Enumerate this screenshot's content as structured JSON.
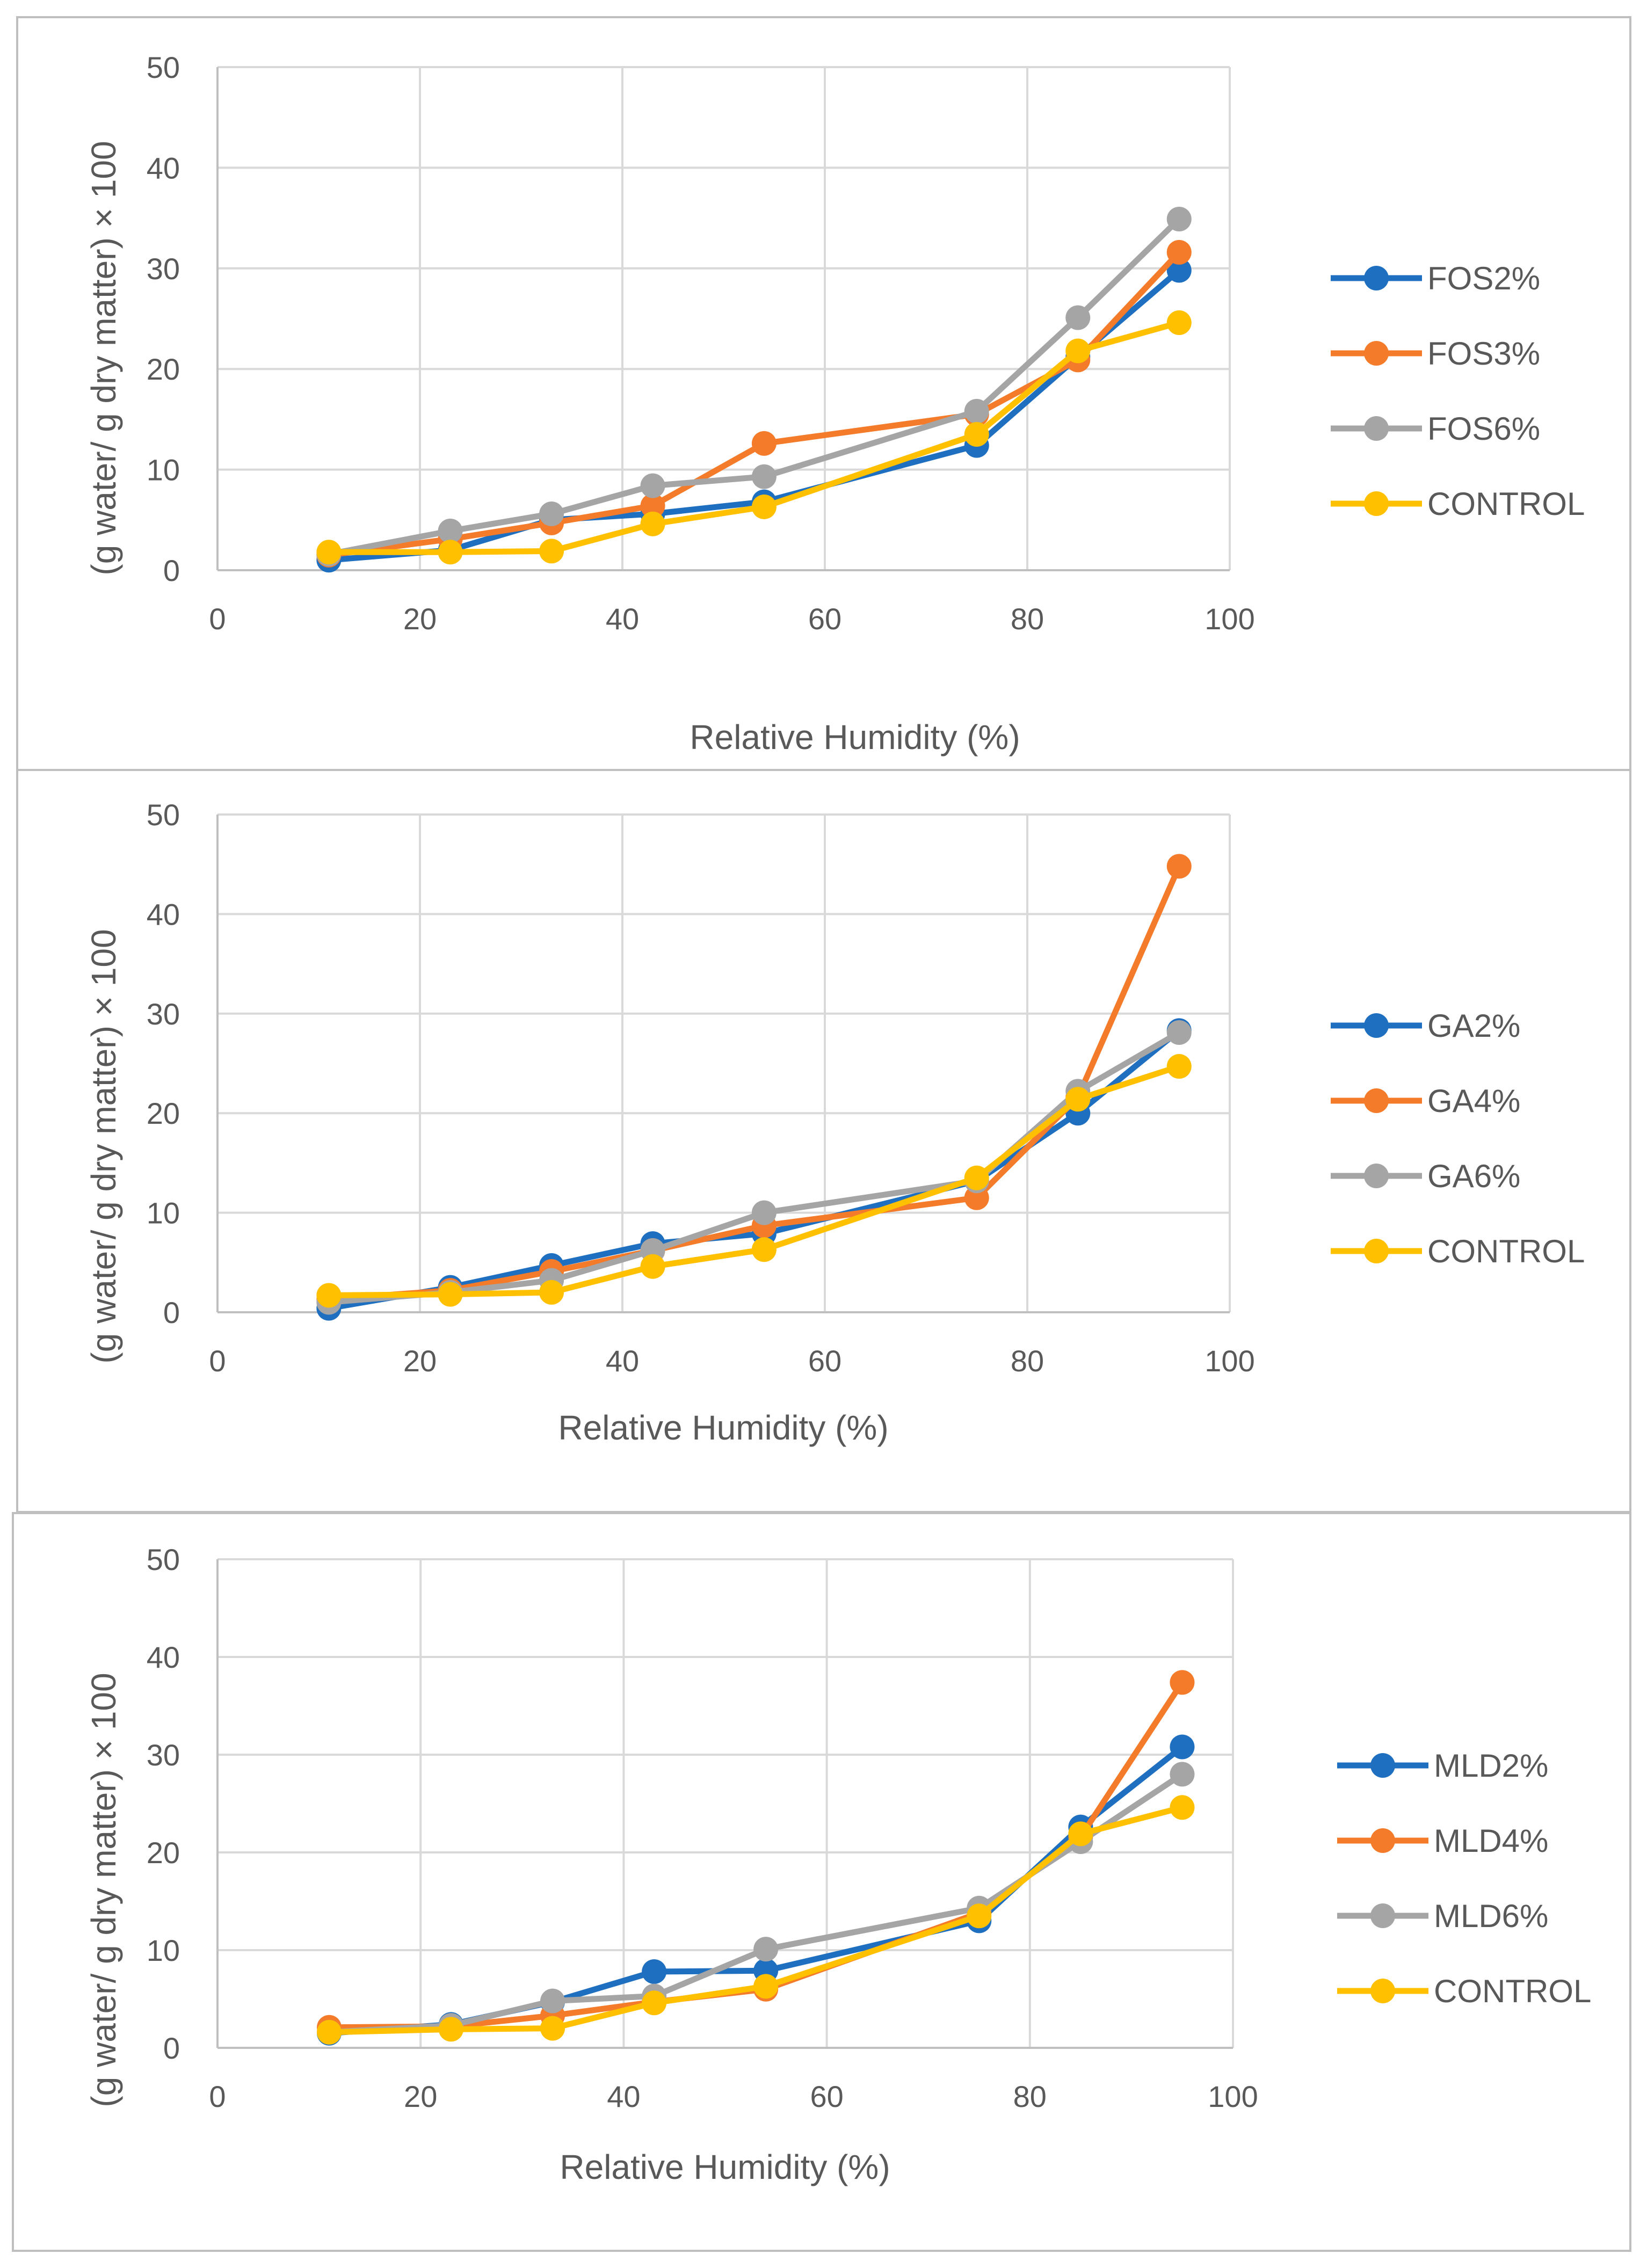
{
  "chart_data": [
    {
      "type": "line",
      "title": "",
      "xlabel": "Relative Humidity (%)",
      "ylabel": "(g water/ g dry matter) × 100",
      "xlim": [
        0,
        100
      ],
      "ylim": [
        0,
        50
      ],
      "xticks": [
        "0",
        "20",
        "40",
        "60",
        "80",
        "100"
      ],
      "yticks": [
        "0",
        "10",
        "20",
        "30",
        "40",
        "50"
      ],
      "grid": true,
      "legend_position": "right",
      "x": [
        11,
        23,
        33,
        43,
        54,
        75,
        85,
        95
      ],
      "series": [
        {
          "name": "FOS2%",
          "color": "#1f6fc0",
          "values": [
            1.0,
            2.0,
            5.0,
            5.6,
            6.8,
            12.4,
            21.2,
            29.8
          ]
        },
        {
          "name": "FOS3%",
          "color": "#f47b2a",
          "values": [
            1.5,
            3.1,
            4.7,
            6.4,
            12.6,
            15.5,
            20.9,
            31.6
          ]
        },
        {
          "name": "FOS6%",
          "color": "#a5a5a5",
          "values": [
            1.6,
            3.9,
            5.6,
            8.4,
            9.3,
            15.8,
            25.1,
            34.9
          ]
        },
        {
          "name": "CONTROL",
          "color": "#ffc000",
          "values": [
            1.8,
            1.8,
            1.9,
            4.6,
            6.3,
            13.5,
            21.8,
            24.6
          ]
        }
      ]
    },
    {
      "type": "line",
      "title": "",
      "xlabel": "Relative Humidity (%)",
      "ylabel": "(g water/ g dry matter) × 100",
      "xlim": [
        0,
        100
      ],
      "ylim": [
        0,
        50
      ],
      "xticks": [
        "0",
        "20",
        "40",
        "60",
        "80",
        "100"
      ],
      "yticks": [
        "0",
        "10",
        "20",
        "30",
        "40",
        "50"
      ],
      "grid": true,
      "legend_position": "right",
      "x": [
        11,
        23,
        33,
        43,
        54,
        75,
        85,
        95
      ],
      "series": [
        {
          "name": "GA2%",
          "color": "#1f6fc0",
          "values": [
            0.4,
            2.5,
            4.7,
            6.9,
            7.9,
            13.2,
            20.0,
            28.3
          ]
        },
        {
          "name": "GA4%",
          "color": "#f47b2a",
          "values": [
            1.3,
            2.2,
            4.1,
            6.2,
            8.7,
            11.5,
            21.6,
            44.8
          ]
        },
        {
          "name": "GA6%",
          "color": "#a5a5a5",
          "values": [
            1.0,
            2.0,
            3.2,
            6.2,
            10.0,
            13.2,
            22.2,
            28.1
          ]
        },
        {
          "name": "CONTROL",
          "color": "#ffc000",
          "values": [
            1.7,
            1.8,
            2.0,
            4.6,
            6.3,
            13.5,
            21.4,
            24.7
          ]
        }
      ]
    },
    {
      "type": "line",
      "title": "",
      "xlabel": "Relative Humidity (%)",
      "ylabel": "(g water/ g dry matter) × 100",
      "xlim": [
        0,
        100
      ],
      "ylim": [
        0,
        50
      ],
      "xticks": [
        "0",
        "20",
        "40",
        "60",
        "80",
        "100"
      ],
      "yticks": [
        "0",
        "10",
        "20",
        "30",
        "40",
        "50"
      ],
      "grid": true,
      "legend_position": "right",
      "x": [
        11,
        23,
        33,
        43,
        54,
        75,
        85,
        95
      ],
      "series": [
        {
          "name": "MLD2%",
          "color": "#1f6fc0",
          "values": [
            1.5,
            2.4,
            4.7,
            7.8,
            7.9,
            13.0,
            22.6,
            30.8
          ]
        },
        {
          "name": "MLD4%",
          "color": "#f47b2a",
          "values": [
            2.1,
            2.2,
            3.3,
            4.7,
            6.0,
            13.8,
            21.6,
            37.4
          ]
        },
        {
          "name": "MLD6%",
          "color": "#a5a5a5",
          "values": [
            1.6,
            2.3,
            4.8,
            5.3,
            10.1,
            14.3,
            21.1,
            28.0
          ]
        },
        {
          "name": "CONTROL",
          "color": "#ffc000",
          "values": [
            1.6,
            1.9,
            2.0,
            4.6,
            6.3,
            13.5,
            21.9,
            24.6
          ]
        }
      ]
    }
  ]
}
